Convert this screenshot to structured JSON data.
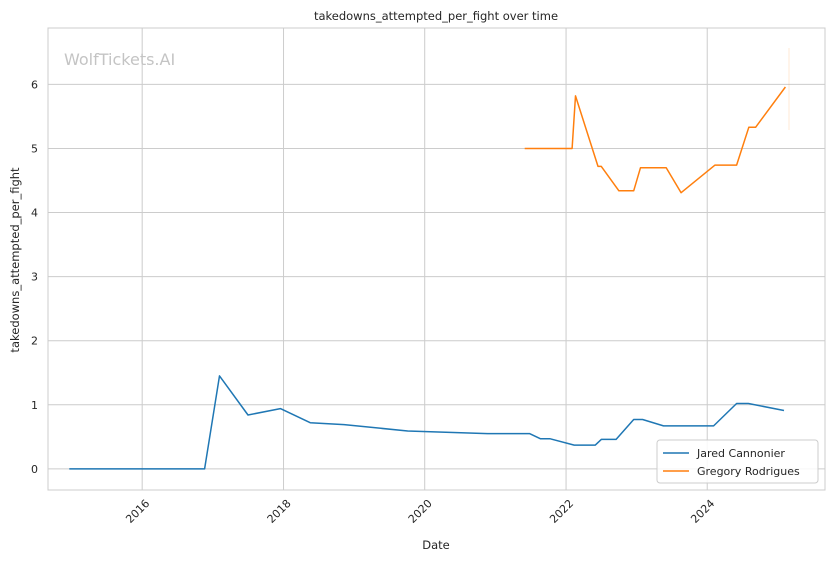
{
  "chart_data": {
    "type": "line",
    "title": "takedowns_attempted_per_fight over time",
    "xlabel": "Date",
    "ylabel": "takedowns_attempted_per_fight",
    "watermark": "WolfTickets.AI",
    "x_ticks": [
      "2016",
      "2018",
      "2020",
      "2022",
      "2024"
    ],
    "y_ticks": [
      "0",
      "1",
      "2",
      "3",
      "4",
      "5",
      "6"
    ],
    "xlim": [
      "2014-09-01",
      "2025-09-01"
    ],
    "ylim": [
      -0.33,
      6.88
    ],
    "grid": true,
    "legend_position": "lower-right",
    "series": [
      {
        "name": "Jared Cannonier",
        "color": "#1f77b4",
        "points": [
          [
            "2014-12-20",
            0.0
          ],
          [
            "2016-11-19",
            0.0
          ],
          [
            "2017-02-04",
            1.45
          ],
          [
            "2017-07-01",
            0.84
          ],
          [
            "2017-12-16",
            0.94
          ],
          [
            "2018-05-19",
            0.72
          ],
          [
            "2018-11-10",
            0.69
          ],
          [
            "2019-10-05",
            0.59
          ],
          [
            "2020-11-21",
            0.55
          ],
          [
            "2021-06-26",
            0.55
          ],
          [
            "2021-08-21",
            0.47
          ],
          [
            "2021-10-09",
            0.47
          ],
          [
            "2022-02-12",
            0.37
          ],
          [
            "2022-06-01",
            0.37
          ],
          [
            "2022-07-02",
            0.46
          ],
          [
            "2022-09-17",
            0.46
          ],
          [
            "2022-12-17",
            0.77
          ],
          [
            "2023-02-01",
            0.77
          ],
          [
            "2023-05-20",
            0.67
          ],
          [
            "2024-01-01",
            0.67
          ],
          [
            "2024-02-03",
            0.67
          ],
          [
            "2024-06-01",
            1.02
          ],
          [
            "2024-08-01",
            1.02
          ],
          [
            "2025-02-01",
            0.91
          ]
        ]
      },
      {
        "name": "Gregory Rodrigues",
        "color": "#ff7f0e",
        "points": [
          [
            "2021-06-01",
            5.0
          ],
          [
            "2022-02-01",
            5.0
          ],
          [
            "2022-02-19",
            5.82
          ],
          [
            "2022-06-15",
            4.72
          ],
          [
            "2022-07-02",
            4.72
          ],
          [
            "2022-10-01",
            4.34
          ],
          [
            "2022-12-17",
            4.34
          ],
          [
            "2023-01-21",
            4.7
          ],
          [
            "2023-06-03",
            4.7
          ],
          [
            "2023-08-19",
            4.31
          ],
          [
            "2024-02-10",
            4.74
          ],
          [
            "2024-06-01",
            4.74
          ],
          [
            "2024-08-03",
            5.33
          ],
          [
            "2024-09-07",
            5.33
          ],
          [
            "2025-02-08",
            5.96
          ]
        ]
      }
    ]
  }
}
